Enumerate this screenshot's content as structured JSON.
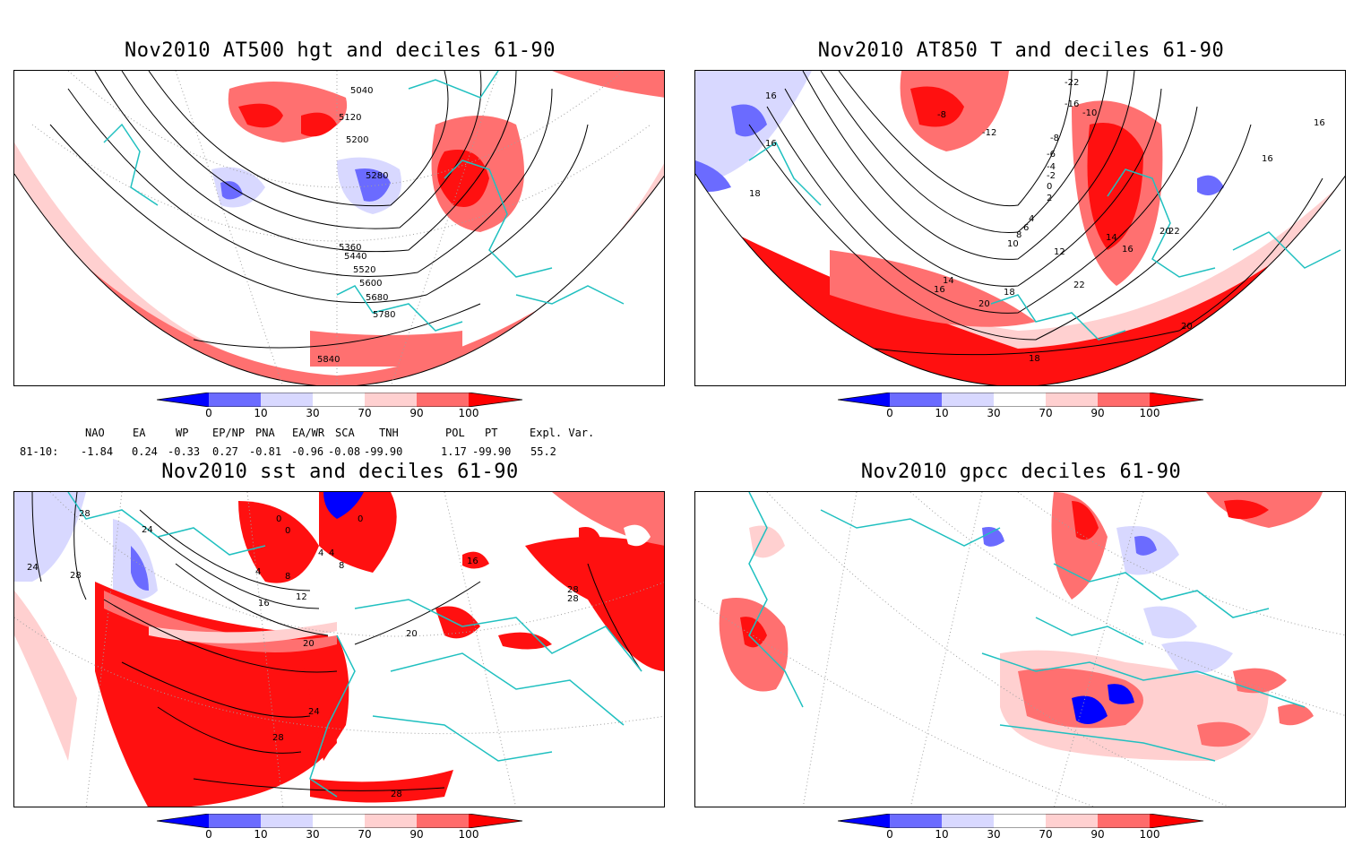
{
  "panels": {
    "p1": {
      "title": "Nov2010 AT500 hgt and deciles 61-90",
      "contours": [
        "5040",
        "5120",
        "5200",
        "5280",
        "5360",
        "5440",
        "5520",
        "5600",
        "5680",
        "5780",
        "5840"
      ]
    },
    "p2": {
      "title": "Nov2010 AT850 T and deciles 61-90",
      "contours": [
        "-8",
        "-12",
        "-22",
        "-16",
        "-10",
        "-8",
        "-6",
        "-4",
        "-2",
        "0",
        "2",
        "4",
        "6",
        "8",
        "10",
        "12",
        "14",
        "16",
        "18",
        "20",
        "22",
        "16",
        "18",
        "20",
        "18",
        "16"
      ]
    },
    "p3": {
      "title": "Nov2010 sst and deciles 61-90",
      "contours": [
        "28",
        "24",
        "24",
        "28",
        "0",
        "0",
        "0",
        "4",
        "4",
        "4",
        "8",
        "8",
        "12",
        "16",
        "16",
        "20",
        "20",
        "24",
        "28",
        "28",
        "28"
      ]
    },
    "p4": {
      "title": "Nov2010 gpcc deciles 61-90",
      "contours": []
    }
  },
  "colorbar": {
    "labels": [
      "0",
      "10",
      "30",
      "70",
      "90",
      "100"
    ],
    "colors": [
      "#0000ff",
      "#6b6bff",
      "#d8d8ff",
      "#ffffff",
      "#ffd0d0",
      "#ff6b6b",
      "#ff0000"
    ]
  },
  "indices": {
    "headers": [
      "NAO",
      "EA",
      "WP",
      "EP/NP",
      "PNA",
      "EA/WR",
      "SCA",
      "TNH",
      "POL",
      "PT",
      "Expl. Var."
    ],
    "row_label": "81-10:",
    "values": [
      "-1.84",
      "0.24",
      "-0.33",
      "0.27",
      "-0.81",
      "-0.96",
      "-0.08",
      "-99.90",
      "1.17",
      "-99.90",
      "55.2"
    ]
  },
  "colors": {
    "coast": "#20c0c0",
    "grid": "#a0a0a0",
    "contour": "#000000"
  }
}
